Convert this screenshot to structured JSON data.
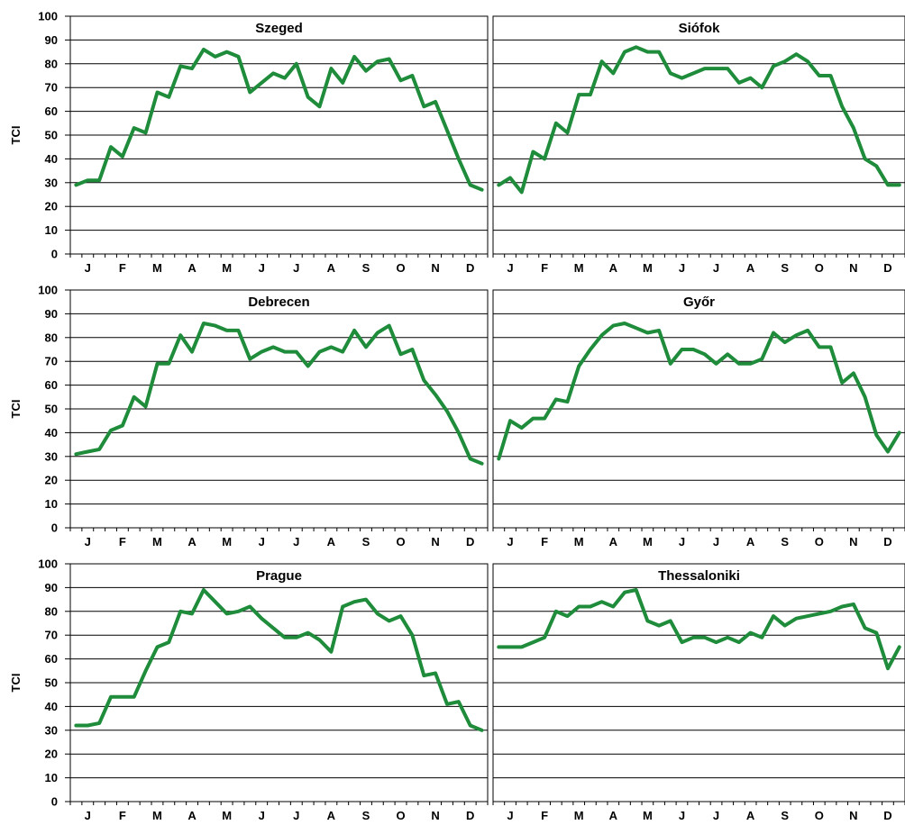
{
  "chart_data": {
    "type": "line",
    "layout": "small-multiples",
    "ylabel": "TCI",
    "ylim": [
      0,
      100
    ],
    "yticks": [
      0,
      10,
      20,
      30,
      40,
      50,
      60,
      70,
      80,
      90,
      100
    ],
    "months": [
      "J",
      "F",
      "M",
      "A",
      "M",
      "J",
      "J",
      "A",
      "S",
      "O",
      "N",
      "D"
    ],
    "line_color": "#1e8c3a",
    "grid": true,
    "panels": [
      {
        "title": "Szeged",
        "values": [
          29,
          31,
          31,
          45,
          41,
          53,
          51,
          68,
          66,
          79,
          78,
          86,
          83,
          85,
          83,
          68,
          72,
          76,
          74,
          80,
          66,
          62,
          78,
          72,
          83,
          77,
          81,
          82,
          73,
          75,
          62,
          64,
          52,
          40,
          29,
          27
        ]
      },
      {
        "title": "Siófok",
        "values": [
          29,
          32,
          26,
          43,
          40,
          55,
          51,
          67,
          67,
          81,
          76,
          85,
          87,
          85,
          85,
          76,
          74,
          76,
          78,
          78,
          78,
          72,
          74,
          70,
          79,
          81,
          84,
          81,
          75,
          75,
          62,
          53,
          40,
          37,
          29,
          29
        ]
      },
      {
        "title": "Debrecen",
        "values": [
          31,
          32,
          33,
          41,
          43,
          55,
          51,
          69,
          69,
          81,
          74,
          86,
          85,
          83,
          83,
          71,
          74,
          76,
          74,
          74,
          68,
          74,
          76,
          74,
          83,
          76,
          82,
          85,
          73,
          75,
          62,
          56,
          49,
          40,
          29,
          27
        ]
      },
      {
        "title": "Győr",
        "values": [
          29,
          45,
          42,
          46,
          46,
          54,
          53,
          68,
          75,
          81,
          85,
          86,
          84,
          82,
          83,
          69,
          75,
          75,
          73,
          69,
          73,
          69,
          69,
          71,
          82,
          78,
          81,
          83,
          76,
          76,
          61,
          65,
          55,
          39,
          32,
          40
        ]
      },
      {
        "title": "Prague",
        "values": [
          32,
          32,
          33,
          44,
          44,
          44,
          55,
          65,
          67,
          80,
          79,
          89,
          84,
          79,
          80,
          82,
          77,
          73,
          69,
          69,
          71,
          68,
          63,
          82,
          84,
          85,
          79,
          76,
          78,
          70,
          53,
          54,
          41,
          42,
          32,
          30
        ]
      },
      {
        "title": "Thessaloniki",
        "values": [
          65,
          65,
          65,
          67,
          69,
          80,
          78,
          82,
          82,
          84,
          82,
          88,
          89,
          76,
          74,
          76,
          67,
          69,
          69,
          67,
          69,
          67,
          71,
          69,
          78,
          74,
          77,
          78,
          79,
          80,
          82,
          83,
          73,
          71,
          56,
          65
        ]
      }
    ]
  }
}
